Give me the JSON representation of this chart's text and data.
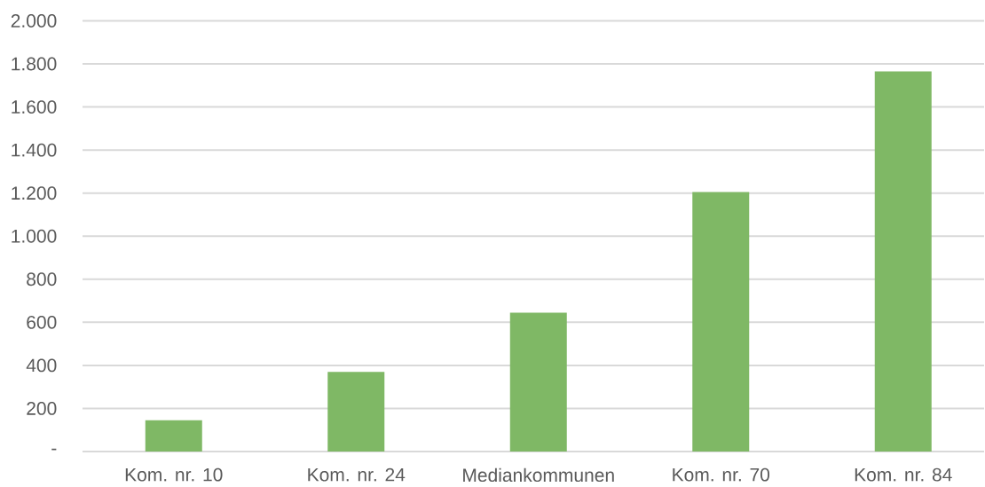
{
  "chart_data": {
    "type": "bar",
    "categories": [
      "Kom. nr. 10",
      "Kom. nr. 24",
      "Mediankommunen",
      "Kom. nr. 70",
      "Kom. nr. 84"
    ],
    "values": [
      145,
      370,
      645,
      1205,
      1765
    ],
    "color": "#7fb865",
    "ylim": [
      0,
      2000
    ],
    "yticks": [
      {
        "value": 0,
        "label": "-"
      },
      200,
      400,
      600,
      800,
      {
        "value": 1000,
        "label": "1.000"
      },
      {
        "value": 1200,
        "label": "1.200"
      },
      {
        "value": 1400,
        "label": "1.400"
      },
      {
        "value": 1600,
        "label": "1.600"
      },
      {
        "value": 1800,
        "label": "1.800"
      },
      {
        "value": 2000,
        "label": "2.000"
      }
    ],
    "grid": "y"
  }
}
